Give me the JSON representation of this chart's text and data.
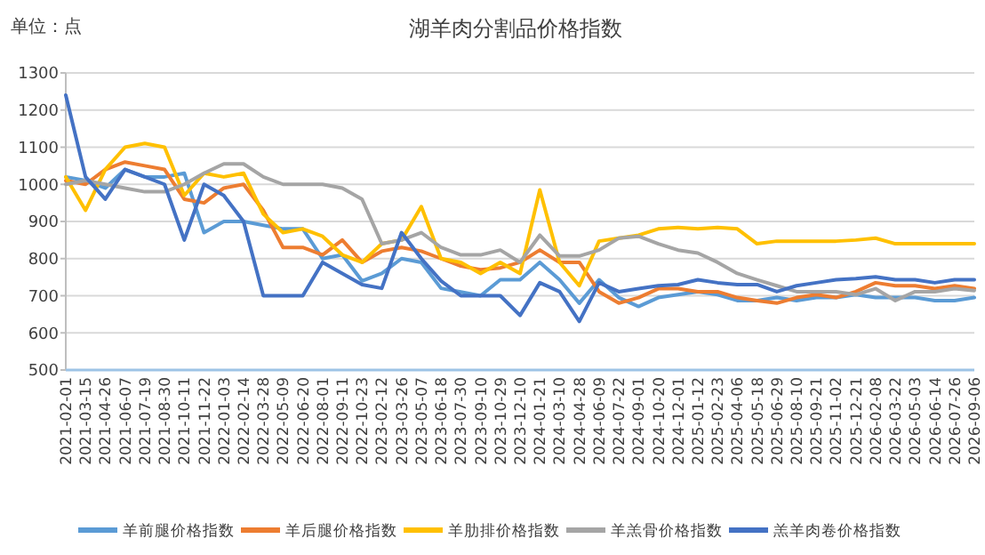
{
  "chart_data": {
    "type": "line",
    "title": "湖羊肉分割品价格指数",
    "annotations": [
      "单位：点"
    ],
    "categories": [
      "2021-02-01",
      "2021-03-15",
      "2021-04-26",
      "2021-06-07",
      "2021-07-19",
      "2021-08-30",
      "2021-10-11",
      "2021-11-22",
      "2022-01-03",
      "2022-02-14",
      "2022-03-28",
      "2022-05-09",
      "2022-06-20",
      "2022-08-01",
      "2022-09-11",
      "2022-10-23",
      "2023-02-12",
      "2023-03-26",
      "2023-05-07",
      "2023-06-18",
      "2023-07-30",
      "2023-09-10",
      "2023-10-29",
      "2023-12-10",
      "2024-01-21",
      "2024-03-10",
      "2024-04-28",
      "2024-06-09",
      "2024-07-22",
      "2024-09-01",
      "2024-10-20",
      "2024-12-01",
      "2025-01-12",
      "2025-02-23",
      "2025-04-06",
      "2025-05-18",
      "2025-06-29",
      "2025-08-10",
      "2025-09-21",
      "2025-11-02",
      "2025-12-21",
      "2026-02-08",
      "2026-03-22",
      "2026-05-03",
      "2026-06-14",
      "2026-07-26",
      "2026-09-06"
    ],
    "series": [
      {
        "name": "羊前腿价格指数",
        "color": "#5b9bd5",
        "values": [
          1020,
          1010,
          990,
          1040,
          1020,
          1020,
          1030,
          870,
          900,
          900,
          890,
          880,
          880,
          800,
          810,
          740,
          760,
          800,
          790,
          720,
          710,
          700,
          743,
          743,
          790,
          743,
          680,
          743,
          695,
          671,
          695,
          703,
          711,
          703,
          687,
          687,
          695,
          687,
          695,
          695,
          703,
          695,
          695,
          695,
          687,
          687,
          695
        ]
      },
      {
        "name": "羊后腿价格指数",
        "color": "#ed7d31",
        "values": [
          1010,
          1000,
          1040,
          1060,
          1050,
          1040,
          960,
          950,
          990,
          1000,
          930,
          830,
          830,
          810,
          850,
          790,
          820,
          830,
          820,
          800,
          780,
          770,
          775,
          790,
          823,
          790,
          790,
          711,
          680,
          695,
          719,
          719,
          711,
          711,
          695,
          687,
          680,
          695,
          703,
          695,
          711,
          735,
          727,
          727,
          719,
          727,
          719
        ]
      },
      {
        "name": "羊肋排价格指数",
        "color": "#ffc000",
        "values": [
          1020,
          930,
          1040,
          1100,
          1110,
          1100,
          970,
          1030,
          1020,
          1030,
          920,
          870,
          880,
          860,
          810,
          790,
          840,
          850,
          940,
          800,
          790,
          760,
          790,
          760,
          985,
          790,
          727,
          847,
          855,
          863,
          880,
          884,
          880,
          884,
          880,
          840,
          847,
          847,
          847,
          847,
          850,
          855,
          840,
          840,
          840,
          840,
          840
        ]
      },
      {
        "name": "羊羔骨价格指数",
        "color": "#a5a5a5",
        "values": [
          1000,
          1010,
          1000,
          990,
          980,
          980,
          1000,
          1030,
          1055,
          1055,
          1020,
          1000,
          1000,
          1000,
          990,
          960,
          840,
          850,
          870,
          830,
          810,
          810,
          823,
          790,
          863,
          807,
          807,
          823,
          855,
          860,
          840,
          823,
          815,
          790,
          760,
          743,
          727,
          711,
          711,
          711,
          703,
          719,
          687,
          711,
          711,
          719,
          714
        ]
      },
      {
        "name": "羔羊肉卷价格指数",
        "color": "#4472c4",
        "values": [
          1240,
          1020,
          960,
          1040,
          1020,
          1000,
          850,
          1000,
          970,
          900,
          700,
          700,
          700,
          790,
          760,
          730,
          720,
          870,
          800,
          740,
          700,
          700,
          700,
          647,
          735,
          711,
          631,
          735,
          711,
          719,
          727,
          730,
          743,
          735,
          730,
          730,
          711,
          727,
          735,
          743,
          746,
          751,
          743,
          743,
          735,
          743,
          743
        ]
      }
    ],
    "ylim": [
      500,
      1300
    ],
    "yticks": [
      500,
      600,
      700,
      800,
      900,
      1000,
      1100,
      1200,
      1300
    ],
    "grid": "y",
    "legend": "bottom",
    "marker": "none",
    "line_style": "solid"
  }
}
